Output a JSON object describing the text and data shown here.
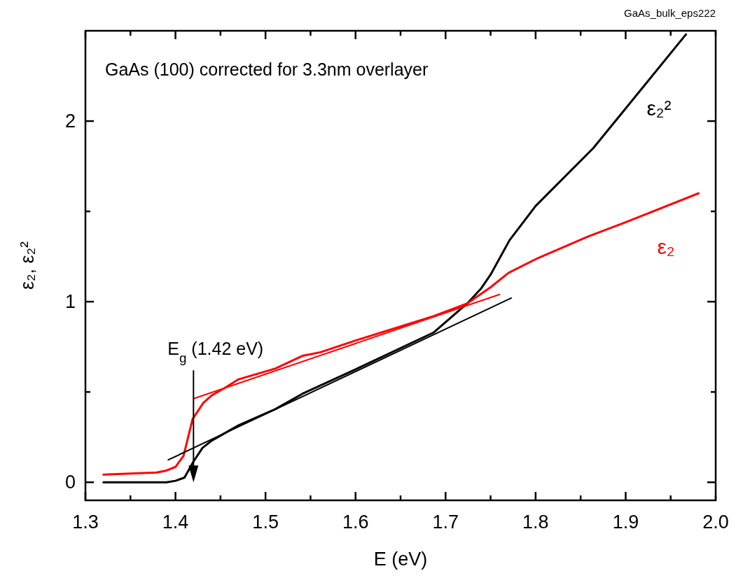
{
  "chart_data": {
    "type": "line",
    "xlabel": "E (eV)",
    "ylabel": "ε₂, ε₂²",
    "xlim": [
      1.3,
      2.0
    ],
    "ylim": [
      -0.1,
      2.5
    ],
    "xticks": [
      1.3,
      {
        "value": 1.35,
        "label": null
      },
      1.4,
      {
        "value": 1.45,
        "label": null
      },
      1.5,
      {
        "value": 1.55,
        "label": null
      },
      1.6,
      {
        "value": 1.65,
        "label": null
      },
      1.7,
      {
        "value": 1.75,
        "label": null
      },
      1.8,
      {
        "value": 1.85,
        "label": null
      },
      1.9,
      {
        "value": 1.95,
        "label": null
      },
      {
        "value": 2,
        "label": "2.0"
      }
    ],
    "yticks": [
      0,
      {
        "value": 0.5,
        "label": null
      },
      1,
      {
        "value": 1.5,
        "label": null
      },
      2
    ],
    "grid": false,
    "legend": "right",
    "line_style": "solid",
    "series": [
      {
        "name": "ε₂²",
        "color": "#000000",
        "x": [
          1.32,
          1.39,
          1.4,
          1.41,
          1.42,
          1.43,
          1.44,
          1.47,
          1.511,
          1.541,
          1.6,
          1.687,
          1.724,
          1.739,
          1.75,
          1.771,
          1.8,
          1.864,
          1.9,
          1.967
        ],
        "values": [
          0,
          0,
          0.008,
          0.026,
          0.115,
          0.19,
          0.23,
          0.315,
          0.405,
          0.49,
          0.625,
          0.83,
          0.99,
          1.07,
          1.15,
          1.34,
          1.53,
          1.85,
          2.07,
          2.48
        ]
      },
      {
        "name": "ε₂",
        "color": "#ff0000",
        "x": [
          1.32,
          1.379,
          1.39,
          1.4,
          1.409,
          1.419,
          1.431,
          1.44,
          1.454,
          1.47,
          1.511,
          1.541,
          1.561,
          1.6,
          1.687,
          1.724,
          1.75,
          1.77,
          1.8,
          1.858,
          1.9,
          1.981
        ],
        "values": [
          0.042,
          0.054,
          0.065,
          0.085,
          0.147,
          0.35,
          0.44,
          0.48,
          0.52,
          0.57,
          0.63,
          0.7,
          0.72,
          0.785,
          0.92,
          0.99,
          1.08,
          1.16,
          1.235,
          1.36,
          1.44,
          1.6
        ]
      },
      {
        "type": "line",
        "color": "#ff0000",
        "x": [
          1.42,
          1.76
        ],
        "values": [
          0.463,
          1.04
        ]
      },
      {
        "type": "line",
        "color": "#000000",
        "x": [
          1.392,
          1.773
        ],
        "values": [
          0.124,
          1.02
        ]
      }
    ],
    "annotations": [
      "GaAs (100) corrected for 3.3nm overlayer",
      "GaAs_bulk_eps222"
    ],
    "ref_lines": [
      {
        "axis": "x",
        "value": 1.42,
        "label": "E$_{g}$ (1.42 eV)",
        "color": "#000000"
      }
    ]
  }
}
